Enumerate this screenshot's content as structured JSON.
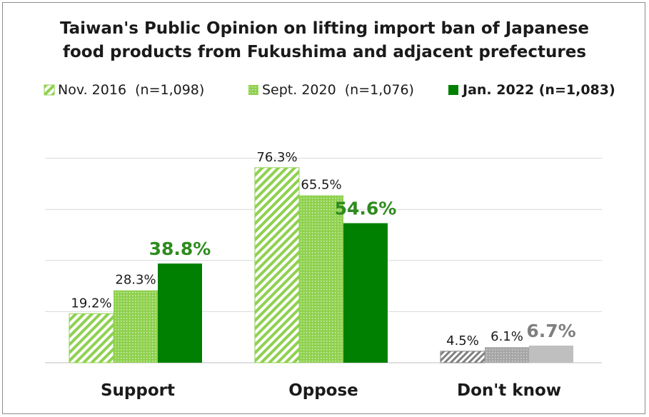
{
  "chart_data": {
    "type": "bar",
    "title_lines": [
      "Taiwan's Public Opinion on lifting import ban of Japanese",
      "food products from Fukushima and adjacent prefectures"
    ],
    "categories": [
      "Support",
      "Oppose",
      "Don't know"
    ],
    "series": [
      {
        "name": "Nov. 2016  (n=1,098)",
        "values": [
          19.2,
          76.3,
          4.5
        ],
        "labels": [
          "19.2%",
          "76.3%",
          "4.5%"
        ],
        "pattern": "diagonal-hatch"
      },
      {
        "name": "Sept. 2020  (n=1,076)",
        "values": [
          28.3,
          65.5,
          6.1
        ],
        "labels": [
          "28.3%",
          "65.5%",
          "6.1%"
        ],
        "pattern": "dotted"
      },
      {
        "name": "Jan. 2022 (n=1,083)",
        "values": [
          38.8,
          54.6,
          6.7
        ],
        "labels": [
          "38.8%",
          "54.6%",
          "6.7%"
        ],
        "pattern": "solid"
      }
    ],
    "ylim": [
      0,
      80
    ],
    "grid": true,
    "legend_position": "top",
    "colors": {
      "light_green": "#8fd14f",
      "dark_green": "#008000",
      "grey_dark": "#808080",
      "grey_mid": "#a6a6a6",
      "grey_light": "#bfbfbf",
      "gridline": "#d9d9d9",
      "label_text": "#1a1a1a",
      "highlight_green": "#2e8b1e",
      "highlight_grey": "#7f7f7f"
    }
  }
}
